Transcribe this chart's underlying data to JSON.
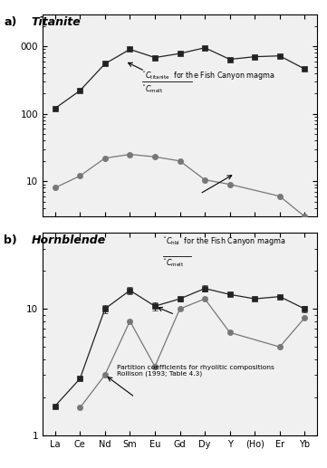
{
  "elements": [
    "La",
    "Ce",
    "Nd",
    "Sm",
    "Eu",
    "Gd",
    "Dy",
    "Y",
    "(Ho)",
    "Er",
    "Yb"
  ],
  "titanite_fish_canyon": [
    120,
    220,
    550,
    900,
    680,
    780,
    950,
    640,
    700,
    720,
    460
  ],
  "titanite_tiepolo": [
    8,
    12,
    22,
    25,
    23,
    20,
    10.5,
    9,
    null,
    6,
    3
  ],
  "titanite_ylim": [
    3,
    3000
  ],
  "hbl_fish_canyon": [
    1.7,
    2.8,
    10,
    14,
    10.5,
    12,
    14.5,
    13,
    12,
    12.5,
    10
  ],
  "hbl_fish_canyon_err_lo": [
    0.0,
    0.0,
    0.8,
    1.0,
    0.8,
    0.5,
    0.8,
    0.0,
    0.0,
    0.0,
    0.6
  ],
  "hbl_fish_canyon_err_hi": [
    0.0,
    0.0,
    0.8,
    1.0,
    0.8,
    0.5,
    0.8,
    0.0,
    0.0,
    0.0,
    0.6
  ],
  "hbl_rollison": [
    null,
    1.65,
    3.0,
    8.0,
    3.5,
    10,
    12,
    6.5,
    null,
    5.0,
    8.5
  ],
  "hbl_ylim": [
    1,
    40
  ],
  "square_color": "#222222",
  "circle_color": "#777777",
  "background": "#f0f0f0"
}
